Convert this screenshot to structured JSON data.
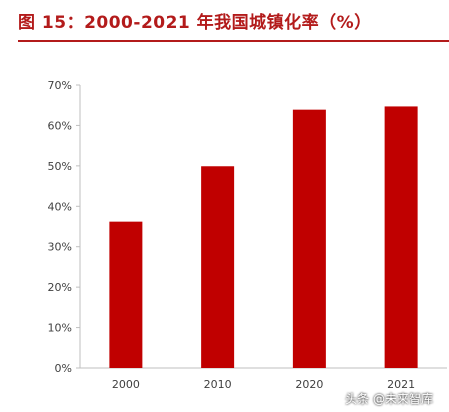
{
  "title": "图 15：2000-2021 年我国城镇化率（%）",
  "watermark": "头条 @未来智库",
  "colors": {
    "bar": "#c00000",
    "title": "#b31b1b",
    "axis": "#bfbfbf",
    "text": "#404040"
  },
  "chart_data": {
    "type": "bar",
    "categories": [
      "2000",
      "2010",
      "2020",
      "2021"
    ],
    "values": [
      36.2,
      49.9,
      63.9,
      64.7
    ],
    "ylim": [
      0,
      70
    ],
    "yticks": [
      "0%",
      "10%",
      "20%",
      "30%",
      "40%",
      "50%",
      "60%",
      "70%"
    ],
    "title": "图 15：2000-2021 年我国城镇化率（%）",
    "xlabel": "",
    "ylabel": "",
    "grid": false,
    "legend": "none"
  }
}
